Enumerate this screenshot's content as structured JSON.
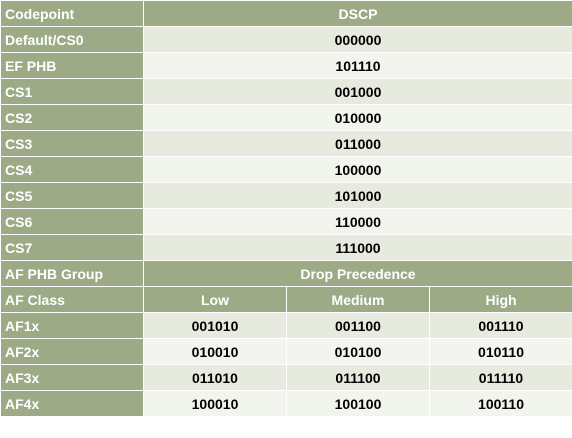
{
  "header": {
    "codepoint_label": "Codepoint",
    "dscp_label": "DSCP"
  },
  "codepoints": [
    {
      "name": "Default/CS0",
      "dscp": "000000"
    },
    {
      "name": "EF PHB",
      "dscp": "101110"
    },
    {
      "name": "CS1",
      "dscp": "001000"
    },
    {
      "name": "CS2",
      "dscp": "010000"
    },
    {
      "name": "CS3",
      "dscp": "011000"
    },
    {
      "name": "CS4",
      "dscp": "100000"
    },
    {
      "name": "CS5",
      "dscp": "101000"
    },
    {
      "name": "CS6",
      "dscp": "110000"
    },
    {
      "name": "CS7",
      "dscp": "111000"
    }
  ],
  "af_header": {
    "group_label": "AF PHB Group",
    "drop_precedence_label": "Drop Precedence",
    "class_label": "AF Class",
    "low_label": "Low",
    "medium_label": "Medium",
    "high_label": "High"
  },
  "af_rows": [
    {
      "name": "AF1x",
      "low": "001010",
      "medium": "001100",
      "high": "001110"
    },
    {
      "name": "AF2x",
      "low": "010010",
      "medium": "010100",
      "high": "010110"
    },
    {
      "name": "AF3x",
      "low": "011010",
      "medium": "011100",
      "high": "011110"
    },
    {
      "name": "AF4x",
      "low": "100010",
      "medium": "100100",
      "high": "100110"
    }
  ]
}
